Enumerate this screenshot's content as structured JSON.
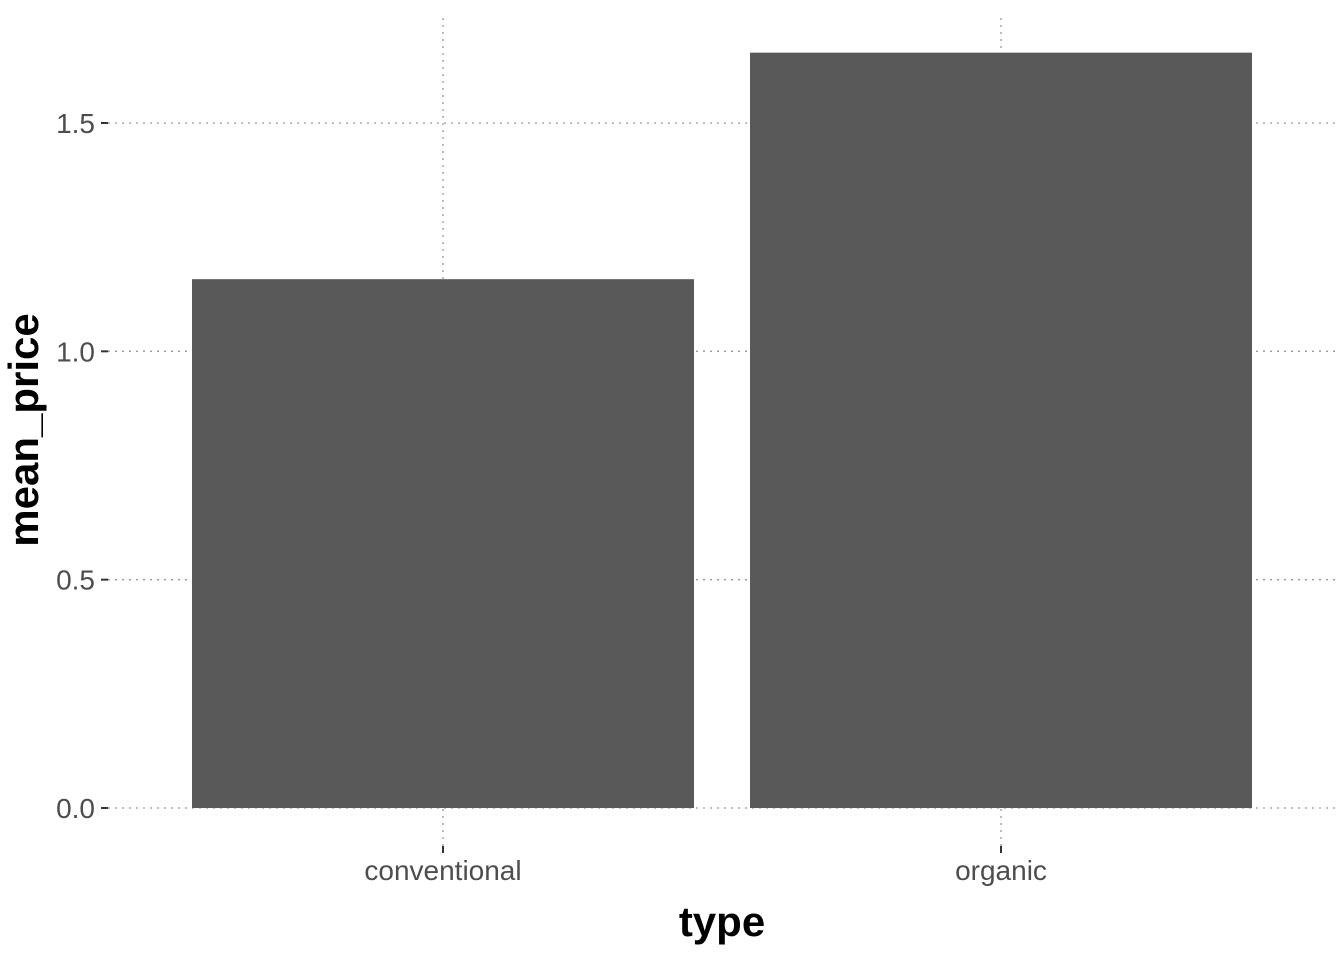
{
  "chart_data": {
    "type": "bar",
    "categories": [
      "conventional",
      "organic"
    ],
    "values": [
      1.158,
      1.654
    ],
    "title": "",
    "xlabel": "type",
    "ylabel": "mean_price",
    "ylim": [
      0,
      1.7
    ],
    "yticks": [
      0.0,
      0.5,
      1.0,
      1.5
    ],
    "ytick_labels": [
      "0.0",
      "0.5",
      "1.0",
      "1.5"
    ],
    "grid": true,
    "legend": "none",
    "colors": {
      "bar": "#595959",
      "grid": "#999999",
      "tick_label": "#4d4d4d",
      "axis_title": "#000000",
      "background": "#ffffff"
    }
  }
}
